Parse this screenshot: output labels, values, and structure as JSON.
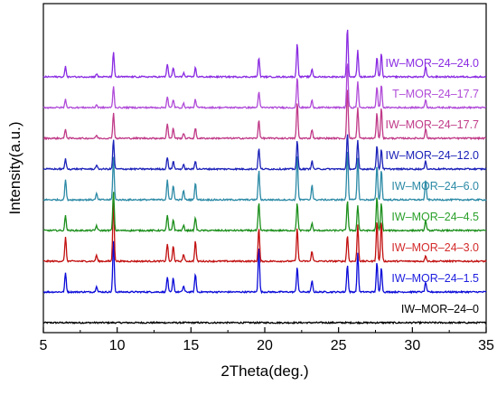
{
  "chart_data": {
    "type": "line",
    "title": "",
    "xlabel": "2Theta(deg.)",
    "ylabel": "Intensity(a.u.)",
    "xlim": [
      5,
      35
    ],
    "x_ticks": [
      "5",
      "10",
      "15",
      "20",
      "25",
      "30",
      "35"
    ],
    "y_ticks": "none",
    "grid": false,
    "legend": "none (each trace labeled at its right end)",
    "peaks_2theta": [
      6.5,
      8.6,
      9.75,
      13.4,
      13.8,
      14.5,
      15.3,
      19.6,
      22.2,
      23.2,
      25.6,
      26.3,
      27.6,
      27.9,
      30.9
    ],
    "series": [
      {
        "name": "IW–MOR–24–0",
        "color": "#000000",
        "label_color": "#000000",
        "offset": 0,
        "peaks": [
          0,
          0,
          0,
          0,
          0,
          0,
          0,
          0,
          0,
          0,
          0,
          0,
          0,
          0,
          0
        ]
      },
      {
        "name": "IW–MOR–24–1.5",
        "color": "#0b0bd9",
        "label_color": "#1d1de0",
        "offset": 1,
        "peaks": [
          0.38,
          0.12,
          1.0,
          0.3,
          0.28,
          0.12,
          0.36,
          0.9,
          0.5,
          0.22,
          0.55,
          0.78,
          0.58,
          0.5,
          0.2
        ]
      },
      {
        "name": "IW–MOR–24–3.0",
        "color": "#c21010",
        "label_color": "#d32a2a",
        "offset": 2,
        "peaks": [
          0.48,
          0.12,
          1.2,
          0.35,
          0.3,
          0.14,
          0.4,
          0.66,
          0.66,
          0.2,
          0.52,
          0.72,
          0.8,
          0.8,
          0.12
        ]
      },
      {
        "name": "IW–MOR–24–4.5",
        "color": "#1c8f1c",
        "label_color": "#2aa02a",
        "offset": 3,
        "peaks": [
          0.3,
          0.1,
          0.78,
          0.3,
          0.22,
          0.1,
          0.26,
          0.55,
          0.55,
          0.14,
          0.6,
          0.5,
          0.66,
          0.55,
          0.2
        ]
      },
      {
        "name": "IW–MOR–24–6.0",
        "color": "#2c8aa6",
        "label_color": "#2c8aa6",
        "offset": 4,
        "peaks": [
          0.4,
          0.12,
          0.85,
          0.4,
          0.3,
          0.18,
          0.34,
          0.58,
          0.9,
          0.3,
          1.0,
          0.82,
          0.68,
          0.6,
          0.38
        ]
      },
      {
        "name": "IW–MOR–24–12.0",
        "color": "#1c22b8",
        "label_color": "#1c22b8",
        "offset": 5,
        "peaks": [
          0.2,
          0.08,
          0.58,
          0.24,
          0.16,
          0.08,
          0.16,
          0.42,
          0.56,
          0.16,
          0.7,
          0.56,
          0.46,
          0.4,
          0.16
        ]
      },
      {
        "name": "IW–MOR–24–17.7",
        "color": "#c03a88",
        "label_color": "#c03a88",
        "offset": 6,
        "peaks": [
          0.18,
          0.06,
          0.5,
          0.3,
          0.2,
          0.1,
          0.2,
          0.36,
          0.72,
          0.18,
          1.0,
          0.6,
          0.5,
          0.6,
          0.2
        ]
      },
      {
        "name": "T–MOR–24–17.7",
        "color": "#b04ad8",
        "label_color": "#b04ad8",
        "offset": 7,
        "peaks": [
          0.16,
          0.06,
          0.42,
          0.22,
          0.16,
          0.08,
          0.16,
          0.32,
          0.6,
          0.14,
          0.9,
          0.52,
          0.42,
          0.46,
          0.16
        ]
      },
      {
        "name": "IW–MOR–24–24.0",
        "color": "#8a2be2",
        "label_color": "#8a2be2",
        "offset": 8,
        "peaks": [
          0.2,
          0.06,
          0.48,
          0.26,
          0.18,
          0.08,
          0.18,
          0.38,
          0.68,
          0.16,
          0.98,
          0.52,
          0.4,
          0.46,
          0.2
        ]
      }
    ]
  }
}
